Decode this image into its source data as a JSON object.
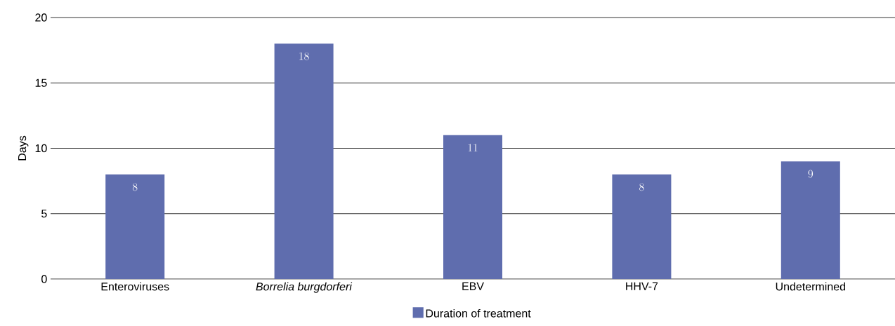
{
  "chart_data": {
    "type": "bar",
    "ylabel": "Days",
    "categories": [
      "Enteroviruses",
      "*Borrelia burgdorferi*",
      "EBV",
      "HHV-7",
      "Undetermined"
    ],
    "series": [
      {
        "name": "Duration of treatment",
        "color": "#5f6dae",
        "values": [
          8,
          18,
          11,
          8,
          9
        ]
      }
    ],
    "ylim": [
      0,
      20
    ],
    "yticks": [
      0,
      5,
      10,
      15,
      20
    ],
    "grid": "y",
    "legend": "bottom",
    "data_labels": true
  }
}
